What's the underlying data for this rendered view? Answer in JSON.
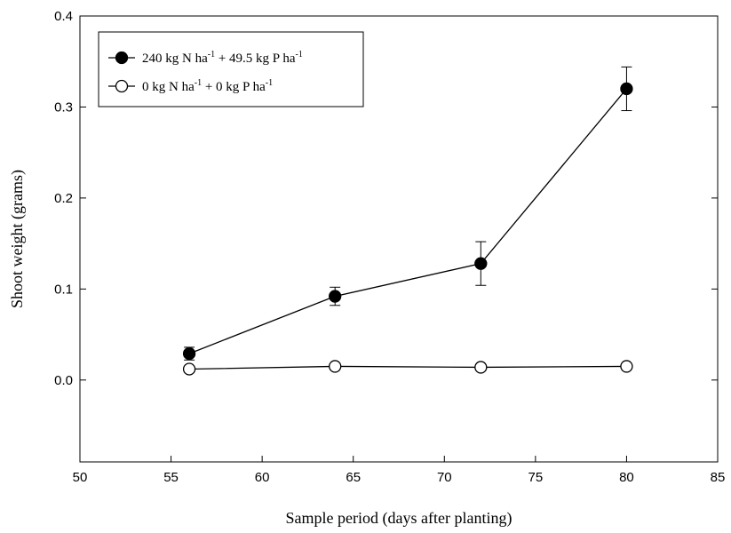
{
  "chart_data": {
    "type": "line",
    "title": "",
    "xlabel": "Sample period (days after planting)",
    "ylabel": "Shoot weight (grams)",
    "xlim": [
      50,
      85
    ],
    "ylim": [
      -0.09,
      0.4
    ],
    "xticks": [
      50,
      55,
      60,
      65,
      70,
      75,
      80,
      85
    ],
    "yticks": [
      0.0,
      0.1,
      0.2,
      0.3,
      0.4
    ],
    "xtick_labels": [
      "50",
      "55",
      "60",
      "65",
      "70",
      "75",
      "80",
      "85"
    ],
    "ytick_labels": [
      "0.0",
      "0.1",
      "0.2",
      "0.3",
      "0.4"
    ],
    "grid": false,
    "legend_position": "top-left",
    "x": [
      56,
      64,
      72,
      80
    ],
    "series": [
      {
        "name": "240 kg N ha-1 + 49.5 kg P ha-1",
        "legend_parts": [
          {
            "text": "240 kg N ha",
            "sup": false
          },
          {
            "text": "-1",
            "sup": true
          },
          {
            "text": " + 49.5 kg P ha",
            "sup": false
          },
          {
            "text": "-1",
            "sup": true
          }
        ],
        "marker": "filled-circle",
        "color": "#000000",
        "values": [
          0.029,
          0.092,
          0.128,
          0.32
        ],
        "errors": [
          0.007,
          0.01,
          0.024,
          0.024
        ]
      },
      {
        "name": "0 kg N ha-1 + 0 kg P ha-1",
        "legend_parts": [
          {
            "text": "0 kg N ha",
            "sup": false
          },
          {
            "text": "-1",
            "sup": true
          },
          {
            "text": " + 0 kg P ha",
            "sup": false
          },
          {
            "text": "-1",
            "sup": true
          }
        ],
        "marker": "open-circle",
        "color": "#000000",
        "values": [
          0.012,
          0.015,
          0.014,
          0.015
        ],
        "errors": [
          0.002,
          0.002,
          0.002,
          0.002
        ]
      }
    ]
  }
}
